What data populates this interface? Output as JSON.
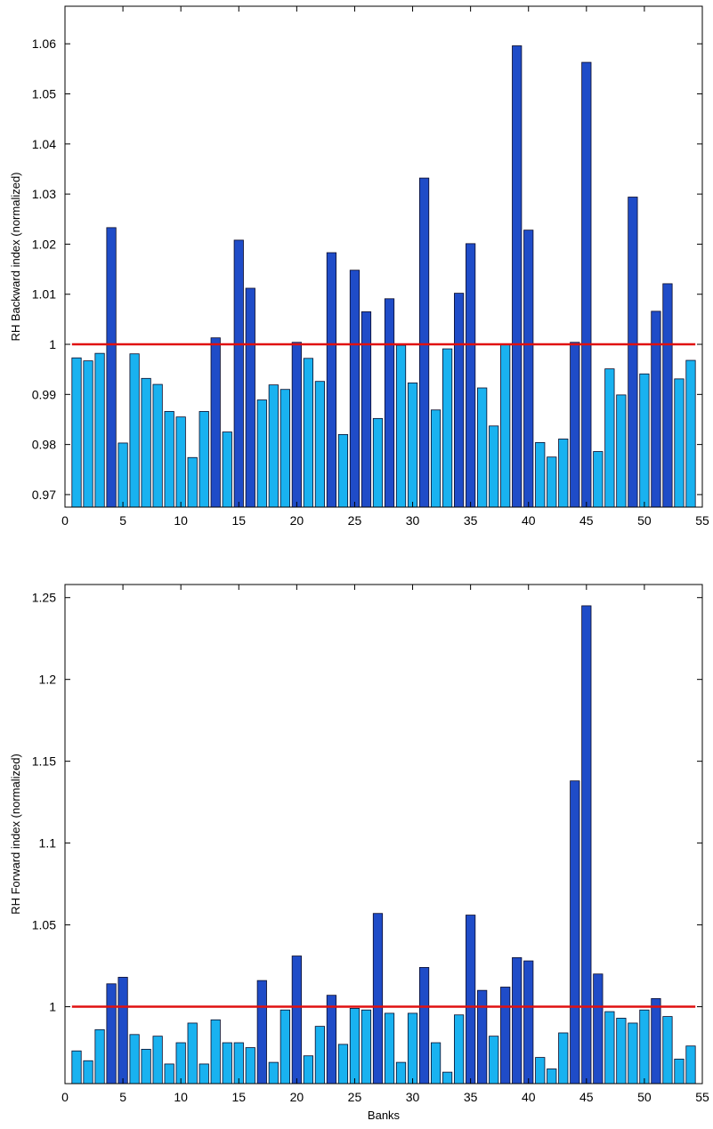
{
  "colors": {
    "above": "#1f4cc8",
    "below": "#19b2f0",
    "bar_edge": "#0a0a28",
    "reference": "#e01010",
    "axis": "#000000"
  },
  "chart_data": [
    {
      "type": "bar",
      "title": "",
      "xlabel": "",
      "ylabel": "RH Backward index (normalized)",
      "xlim": [
        0,
        55
      ],
      "ylim": [
        0.9675,
        1.0675
      ],
      "xticks": [
        0,
        5,
        10,
        15,
        20,
        25,
        30,
        35,
        40,
        45,
        50,
        55
      ],
      "yticks": [
        0.97,
        0.98,
        0.99,
        1,
        1.01,
        1.02,
        1.03,
        1.04,
        1.05,
        1.06
      ],
      "reference_line": 1,
      "grid": false,
      "x": [
        1,
        2,
        3,
        4,
        5,
        6,
        7,
        8,
        9,
        10,
        11,
        12,
        13,
        14,
        15,
        16,
        17,
        18,
        19,
        20,
        21,
        22,
        23,
        24,
        25,
        26,
        27,
        28,
        29,
        30,
        31,
        32,
        33,
        34,
        35,
        36,
        37,
        38,
        39,
        40,
        41,
        42,
        43,
        44,
        45,
        46,
        47,
        48,
        49,
        50,
        51,
        52,
        53,
        54
      ],
      "values": [
        0.9973,
        0.9967,
        0.9982,
        1.0233,
        0.9803,
        0.9981,
        0.9932,
        0.992,
        0.9866,
        0.9855,
        0.9774,
        0.9866,
        1.0013,
        0.9825,
        1.0208,
        1.0112,
        0.9889,
        0.9919,
        0.991,
        1.0004,
        0.9972,
        0.9926,
        1.0183,
        0.982,
        1.0148,
        1.0065,
        0.9852,
        1.0091,
        0.9998,
        0.9923,
        1.0332,
        0.9869,
        0.9991,
        1.0102,
        1.0201,
        0.9913,
        0.9837,
        0.9999,
        1.0596,
        1.0228,
        0.9804,
        0.9775,
        0.9811,
        1.0004,
        1.0563,
        0.9786,
        0.9951,
        0.9899,
        1.0294,
        0.9941,
        1.0066,
        1.0121,
        0.9931,
        0.9968
      ]
    },
    {
      "type": "bar",
      "title": "",
      "xlabel": "Banks",
      "ylabel": "RH Forward index (normalized)",
      "xlim": [
        0,
        55
      ],
      "ylim": [
        0.953,
        1.258
      ],
      "xticks": [
        0,
        5,
        10,
        15,
        20,
        25,
        30,
        35,
        40,
        45,
        50,
        55
      ],
      "yticks": [
        1,
        1.05,
        1.1,
        1.15,
        1.2,
        1.25
      ],
      "reference_line": 1,
      "grid": false,
      "x": [
        1,
        2,
        3,
        4,
        5,
        6,
        7,
        8,
        9,
        10,
        11,
        12,
        13,
        14,
        15,
        16,
        17,
        18,
        19,
        20,
        21,
        22,
        23,
        24,
        25,
        26,
        27,
        28,
        29,
        30,
        31,
        32,
        33,
        34,
        35,
        36,
        37,
        38,
        39,
        40,
        41,
        42,
        43,
        44,
        45,
        46,
        47,
        48,
        49,
        50,
        51,
        52,
        53,
        54
      ],
      "values": [
        0.973,
        0.967,
        0.986,
        1.014,
        1.018,
        0.983,
        0.974,
        0.982,
        0.965,
        0.978,
        0.99,
        0.965,
        0.992,
        0.978,
        0.978,
        0.975,
        1.016,
        0.966,
        0.998,
        1.031,
        0.97,
        0.988,
        1.007,
        0.977,
        0.999,
        0.998,
        1.057,
        0.996,
        0.966,
        0.996,
        1.024,
        0.978,
        0.96,
        0.995,
        1.056,
        1.01,
        0.982,
        1.012,
        1.03,
        1.028,
        0.969,
        0.962,
        0.984,
        1.138,
        1.245,
        1.02,
        0.997,
        0.993,
        0.99,
        0.998,
        1.005,
        0.994,
        0.968,
        0.976
      ]
    }
  ]
}
